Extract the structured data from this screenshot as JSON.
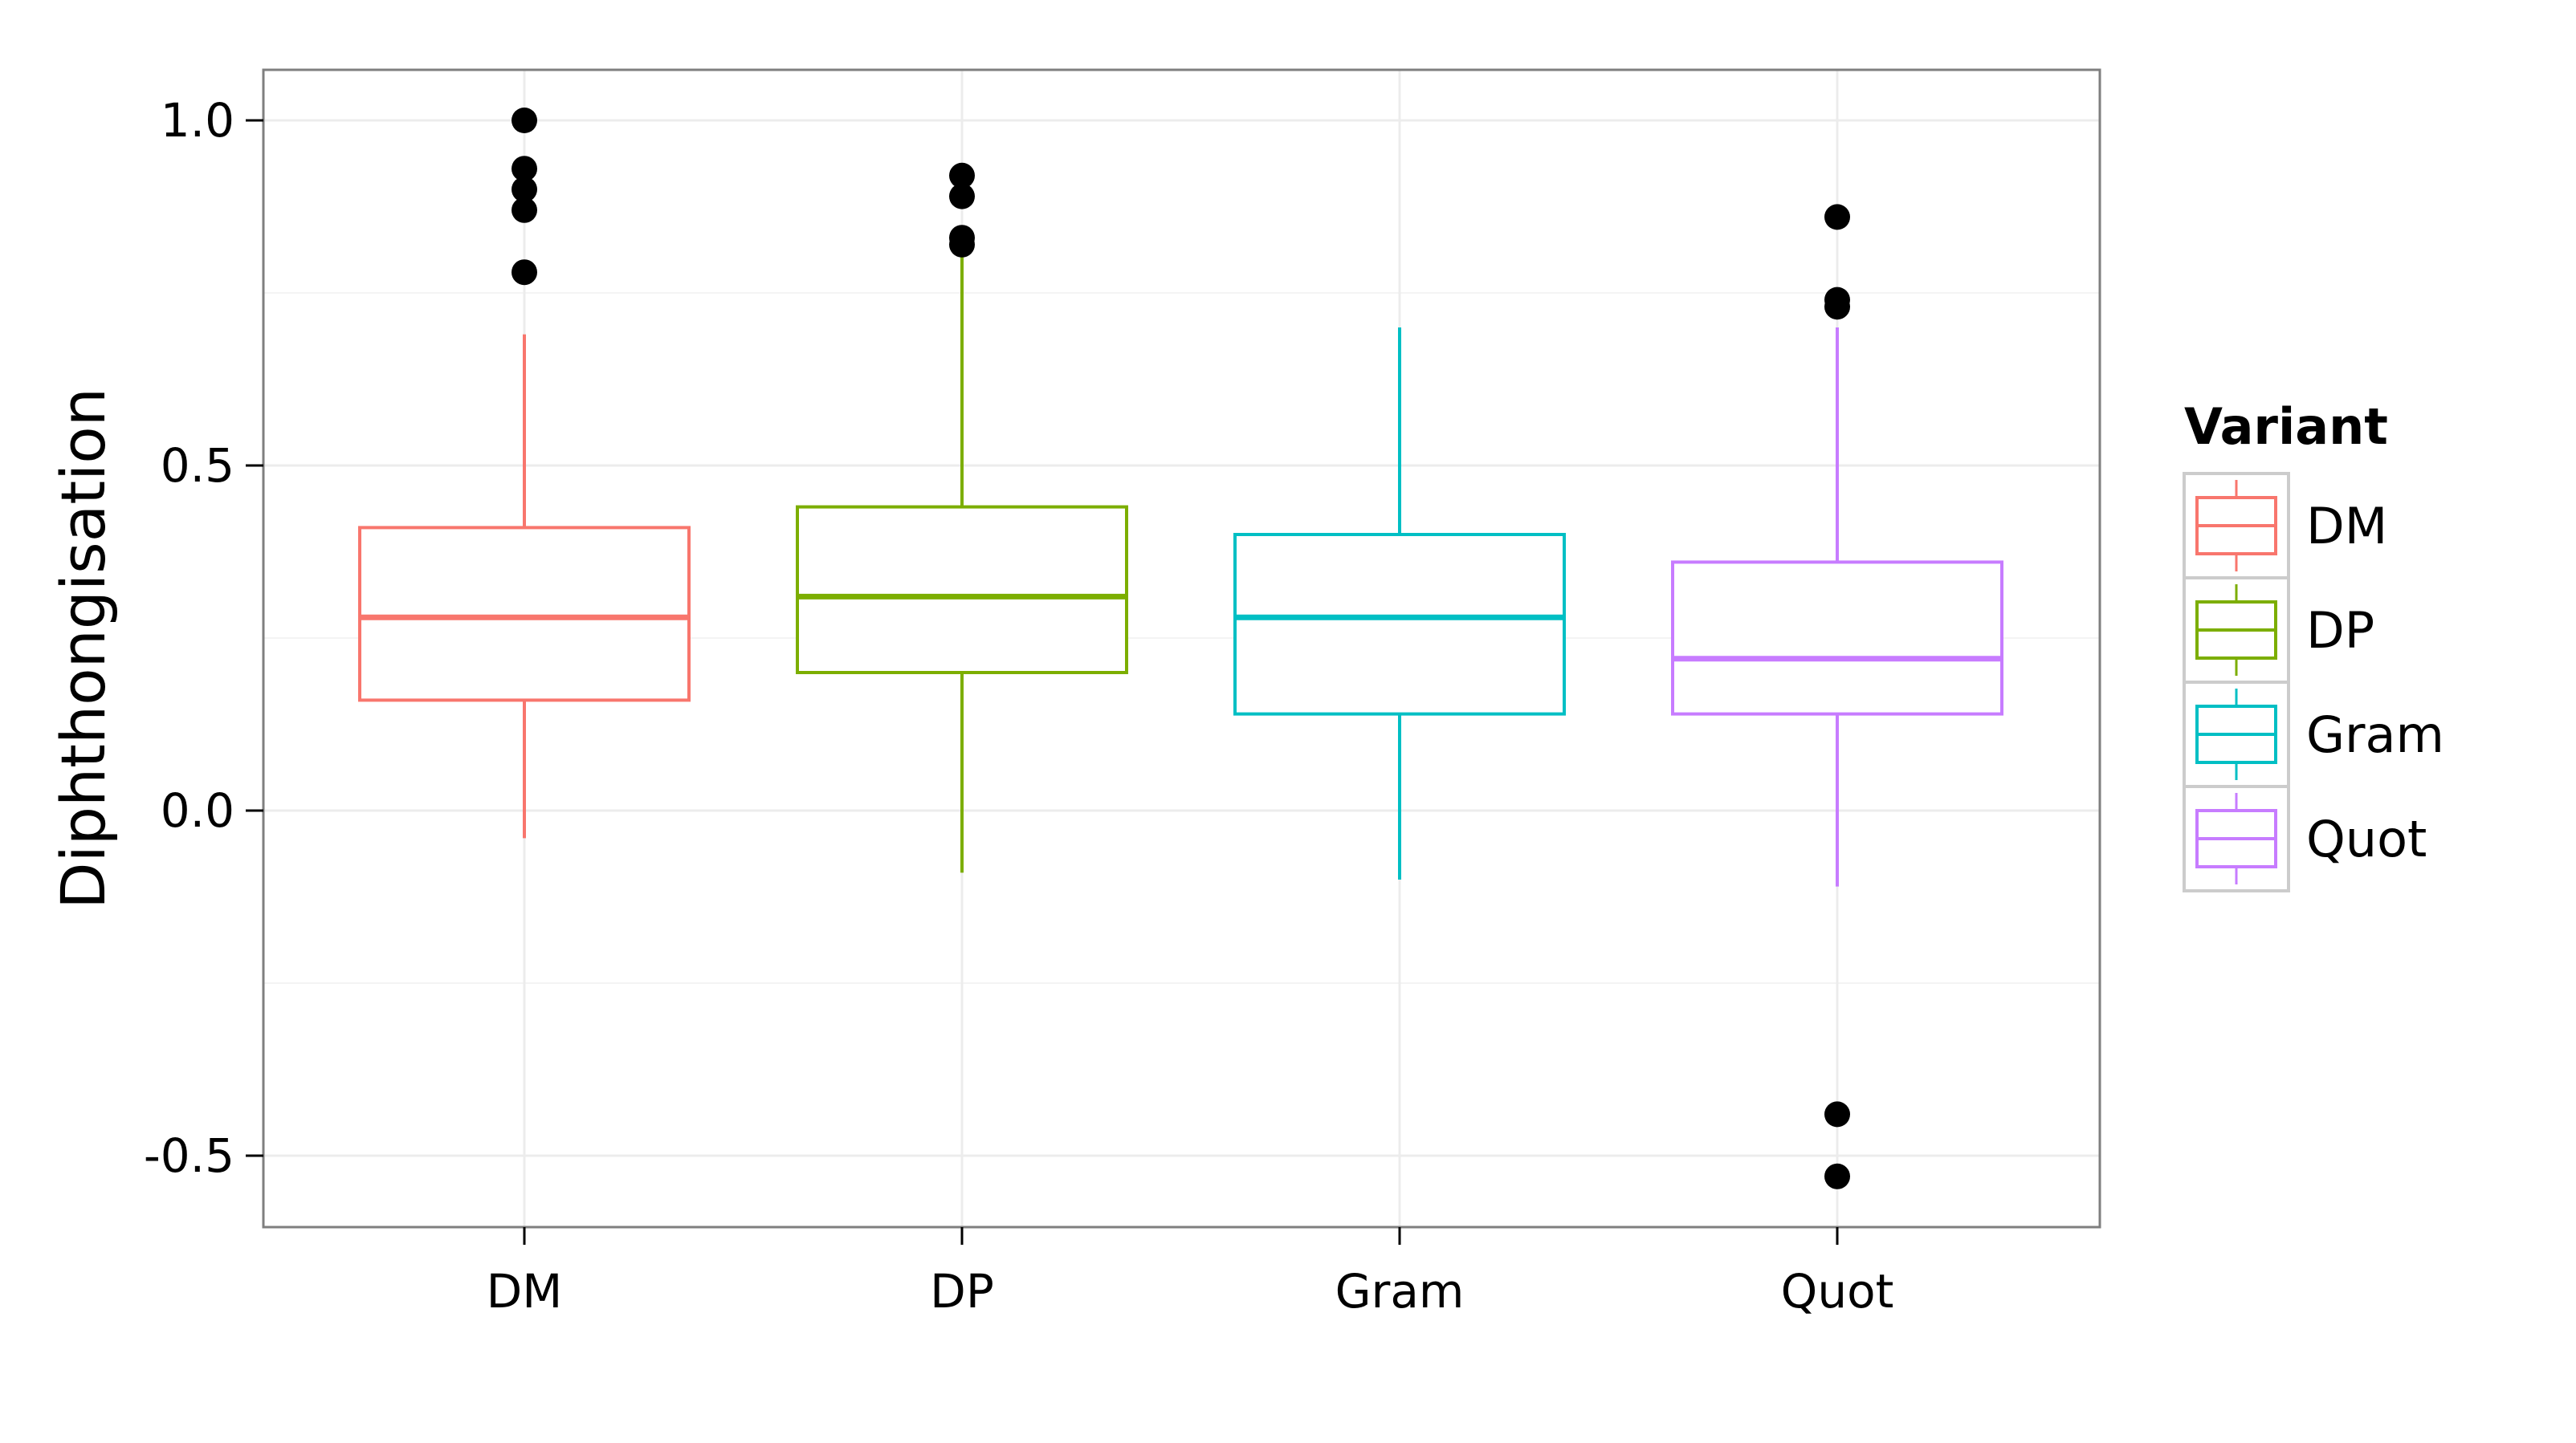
{
  "chart_data": {
    "type": "boxplot",
    "title": "",
    "xlabel": "",
    "ylabel": "Diphthongisation",
    "ylim": [
      -0.6,
      1.075
    ],
    "y_ticks": [
      1.0,
      0.5,
      0.0,
      -0.5
    ],
    "y_tick_labels": [
      "1.0",
      "0.5",
      "0.0",
      "-0.5"
    ],
    "grid": true,
    "legend_position": "right",
    "legend_title": "Variant",
    "categories": [
      "DM",
      "DP",
      "Gram",
      "Quot"
    ],
    "series": [
      {
        "name": "DM",
        "color": "#F8766D",
        "whisker_low": -0.04,
        "q1": 0.16,
        "median": 0.28,
        "q3": 0.41,
        "whisker_high": 0.69,
        "outliers": [
          1.0,
          0.93,
          0.9,
          0.87,
          0.78
        ]
      },
      {
        "name": "DP",
        "color": "#7CAE00",
        "whisker_low": -0.09,
        "q1": 0.2,
        "median": 0.31,
        "q3": 0.44,
        "whisker_high": 0.81,
        "outliers": [
          0.92,
          0.89,
          0.83,
          0.82
        ]
      },
      {
        "name": "Gram",
        "color": "#00BFC4",
        "whisker_low": -0.1,
        "q1": 0.14,
        "median": 0.28,
        "q3": 0.4,
        "whisker_high": 0.7,
        "outliers": []
      },
      {
        "name": "Quot",
        "color": "#C77CFF",
        "whisker_low": -0.11,
        "q1": 0.14,
        "median": 0.22,
        "q3": 0.36,
        "whisker_high": 0.7,
        "outliers": [
          0.86,
          0.74,
          0.73,
          -0.44,
          -0.53
        ]
      }
    ]
  }
}
